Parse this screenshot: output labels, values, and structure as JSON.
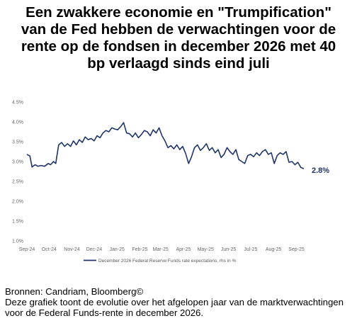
{
  "header": {
    "title": "Een zwakkere economie en \"Trumpification\"\nvan de Fed hebben de verwachtingen voor de\nrente op de fondsen in december 2026 met 40\nbp verlaagd sinds eind juli"
  },
  "footer": {
    "source": "Bronnen: Candriam, Bloomberg©",
    "caption": "Deze grafiek toont de evolutie over het afgelopen jaar van de marktverwachtingen voor de Federal Funds-rente in december 2026."
  },
  "chart_data": {
    "type": "line",
    "x_ticks": [
      "Sep-24",
      "Oct-24",
      "Nov-24",
      "Dec-24",
      "Jan-25",
      "Feb-25",
      "Mar-25",
      "Apr-25",
      "May-25",
      "Jun-25",
      "Jul-25",
      "Aug-25",
      "Sep-25"
    ],
    "y_ticks": [
      "1.0%",
      "1.5%",
      "2.0%",
      "2.5%",
      "3.0%",
      "3.5%",
      "4.0%",
      "4.5%"
    ],
    "ylim": [
      1.0,
      4.5
    ],
    "grid": false,
    "legend_position": "bottom-left",
    "end_label": "2.8%",
    "series_color": "#1f3468",
    "series": [
      {
        "name": "December 2026 Federal Reserve Funds rate expectations, rhs in %",
        "x": [
          "2024-09-01",
          "2024-09-05",
          "2024-09-08",
          "2024-09-12",
          "2024-09-16",
          "2024-09-20",
          "2024-09-25",
          "2024-09-30",
          "2024-10-03",
          "2024-10-07",
          "2024-10-10",
          "2024-10-14",
          "2024-10-18",
          "2024-10-22",
          "2024-10-26",
          "2024-10-30",
          "2024-11-03",
          "2024-11-07",
          "2024-11-11",
          "2024-11-15",
          "2024-11-19",
          "2024-11-23",
          "2024-11-27",
          "2024-12-01",
          "2024-12-05",
          "2024-12-09",
          "2024-12-13",
          "2024-12-17",
          "2024-12-21",
          "2024-12-25",
          "2024-12-29",
          "2025-01-02",
          "2025-01-06",
          "2025-01-10",
          "2025-01-14",
          "2025-01-18",
          "2025-01-22",
          "2025-01-26",
          "2025-01-30",
          "2025-02-03",
          "2025-02-07",
          "2025-02-11",
          "2025-02-15",
          "2025-02-19",
          "2025-02-23",
          "2025-02-27",
          "2025-03-03",
          "2025-03-07",
          "2025-03-11",
          "2025-03-15",
          "2025-03-19",
          "2025-03-23",
          "2025-03-27",
          "2025-03-31",
          "2025-04-04",
          "2025-04-08",
          "2025-04-12",
          "2025-04-16",
          "2025-04-20",
          "2025-04-24",
          "2025-04-28",
          "2025-05-02",
          "2025-05-06",
          "2025-05-10",
          "2025-05-14",
          "2025-05-18",
          "2025-05-22",
          "2025-05-26",
          "2025-05-30",
          "2025-06-03",
          "2025-06-07",
          "2025-06-11",
          "2025-06-15",
          "2025-06-19",
          "2025-06-23",
          "2025-06-27",
          "2025-07-01",
          "2025-07-05",
          "2025-07-09",
          "2025-07-13",
          "2025-07-17",
          "2025-07-21",
          "2025-07-25",
          "2025-07-29",
          "2025-08-02",
          "2025-08-06",
          "2025-08-10",
          "2025-08-14",
          "2025-08-18",
          "2025-08-22",
          "2025-08-26",
          "2025-08-30",
          "2025-09-03",
          "2025-09-07",
          "2025-09-11"
        ],
        "values": [
          3.18,
          3.14,
          2.86,
          2.92,
          2.88,
          2.9,
          2.88,
          2.95,
          2.92,
          3.0,
          2.95,
          3.42,
          3.48,
          3.38,
          3.45,
          3.38,
          3.52,
          3.42,
          3.55,
          3.48,
          3.62,
          3.55,
          3.58,
          3.52,
          3.65,
          3.6,
          3.72,
          3.78,
          3.75,
          3.85,
          3.82,
          3.8,
          3.88,
          3.98,
          3.72,
          3.7,
          3.62,
          3.72,
          3.6,
          3.68,
          3.78,
          3.75,
          3.65,
          3.8,
          3.72,
          3.85,
          3.65,
          3.52,
          3.35,
          3.4,
          3.32,
          3.42,
          3.3,
          3.38,
          3.2,
          2.95,
          3.12,
          3.35,
          3.42,
          3.28,
          3.35,
          3.45,
          3.28,
          3.35,
          3.22,
          3.3,
          3.1,
          3.18,
          3.35,
          3.25,
          3.18,
          3.3,
          3.05,
          3.0,
          2.95,
          3.15,
          3.18,
          3.12,
          3.22,
          3.15,
          3.25,
          3.3,
          3.18,
          3.22,
          2.95,
          3.15,
          3.22,
          3.18,
          3.25,
          2.98,
          3.0,
          2.92,
          2.98,
          2.85,
          2.82
        ]
      }
    ]
  }
}
